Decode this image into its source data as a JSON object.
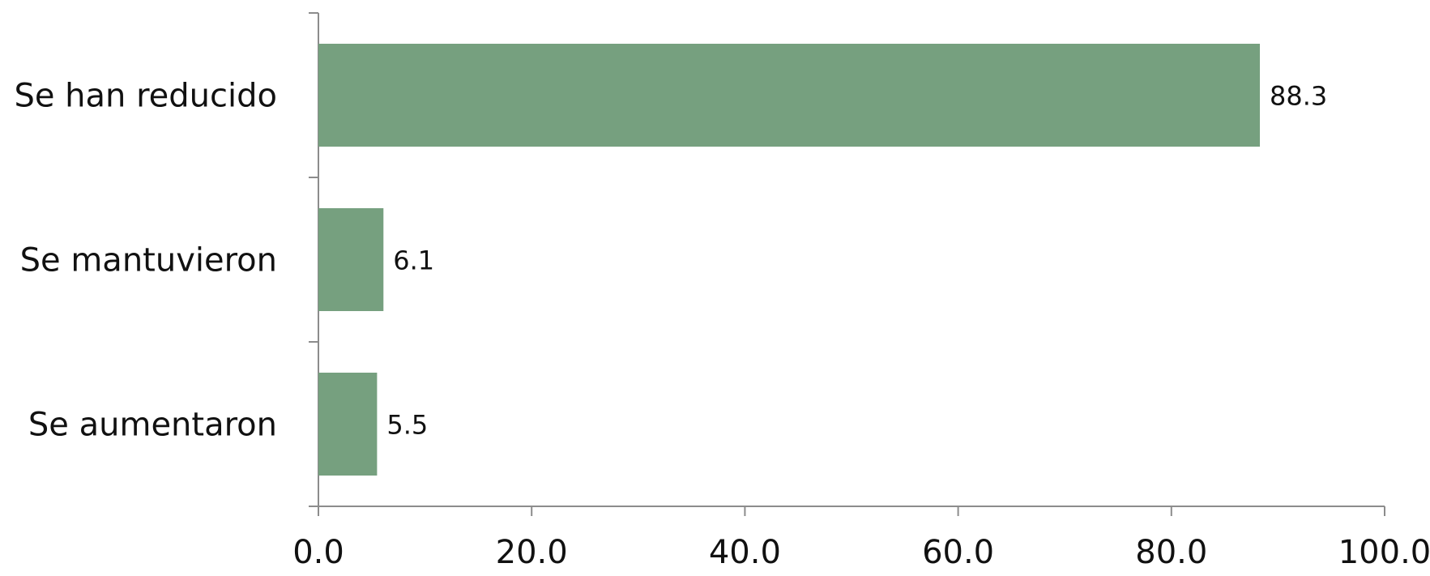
{
  "chart_data": {
    "type": "bar",
    "orientation": "horizontal",
    "categories": [
      "Se han reducido",
      "Se mantuvieron",
      "Se aumentaron"
    ],
    "values": [
      88.3,
      6.1,
      5.5
    ],
    "data_labels": [
      "88.3",
      "6.1",
      "5.5"
    ],
    "x_ticks": [
      "0.0",
      "20.0",
      "40.0",
      "60.0",
      "80.0",
      "100.0"
    ],
    "xlim": [
      0,
      100
    ],
    "title": "",
    "xlabel": "",
    "ylabel": "",
    "grid": false,
    "legend": "none",
    "bar_color": "#76a07f",
    "axis_color": "#8c8c8c"
  }
}
